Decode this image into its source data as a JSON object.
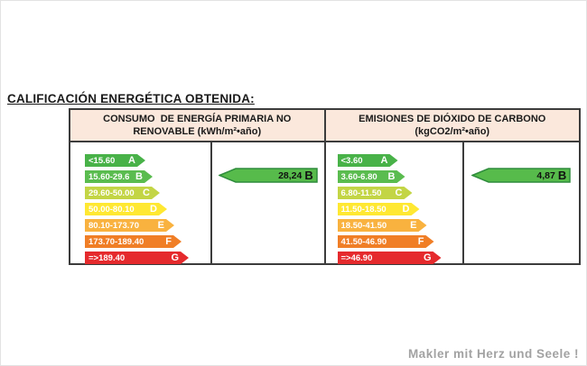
{
  "title": "CALIFICACIÓN ENERGÉTICA OBTENIDA:",
  "footer": "Makler mit Herz und Seele !",
  "colors": {
    "A": "#48B248",
    "B": "#5ABC4F",
    "C": "#C3D545",
    "D": "#FFE832",
    "E": "#F9B23F",
    "F": "#F07E26",
    "G": "#E52A2D",
    "result_fill": "#57BB4B",
    "result_stroke": "#2E8C3C",
    "header_bg": "#FBE8DC",
    "table_border": "#3C3C3C"
  },
  "panels": [
    {
      "header_line1": "CONSUMO  DE ENERGÍA PRIMARIA NO",
      "header_line2": "RENOVABLE (kWh/m²•año)",
      "bars": [
        {
          "range": "<15.60",
          "letter": "A"
        },
        {
          "range": "15.60-29.6",
          "letter": "B"
        },
        {
          "range": "29.60-50.00",
          "letter": "C"
        },
        {
          "range": "50.00-80.10",
          "letter": "D"
        },
        {
          "range": "80.10-173.70",
          "letter": "E"
        },
        {
          "range": "173.70-189.40",
          "letter": "F"
        },
        {
          "range": "=>189.40",
          "letter": "G"
        }
      ],
      "result": {
        "value": "28,24",
        "letter": "B"
      }
    },
    {
      "header_line1": "EMISIONES DE DIÓXIDO DE CARBONO",
      "header_line2": "(kgCO2/m²•año)",
      "bars": [
        {
          "range": "<3.60",
          "letter": "A"
        },
        {
          "range": "3.60-6.80",
          "letter": "B"
        },
        {
          "range": "6.80-11.50",
          "letter": "C"
        },
        {
          "range": "11.50-18.50",
          "letter": "D"
        },
        {
          "range": "18.50-41.50",
          "letter": "E"
        },
        {
          "range": "41.50-46.90",
          "letter": "F"
        },
        {
          "range": "=>46.90",
          "letter": "G"
        }
      ],
      "result": {
        "value": "4,87",
        "letter": "B"
      }
    }
  ],
  "chart_data": [
    {
      "type": "bar",
      "title": "CONSUMO DE ENERGÍA PRIMARIA NO RENOVABLE (kWh/m²•año)",
      "categories": [
        "A",
        "B",
        "C",
        "D",
        "E",
        "F",
        "G"
      ],
      "ranges": [
        "<15.60",
        "15.60-29.6",
        "29.60-50.00",
        "50.00-80.10",
        "80.10-173.70",
        "173.70-189.40",
        "=>189.40"
      ],
      "range_colors": [
        "#48B248",
        "#5ABC4F",
        "#C3D545",
        "#FFE832",
        "#F9B23F",
        "#F07E26",
        "#E52A2D"
      ],
      "obtained_value": 28.24,
      "obtained_value_label": "28,24",
      "obtained_rating": "B",
      "legend_position": "none",
      "grid": false
    },
    {
      "type": "bar",
      "title": "EMISIONES DE DIÓXIDO DE CARBONO (kgCO2/m²•año)",
      "categories": [
        "A",
        "B",
        "C",
        "D",
        "E",
        "F",
        "G"
      ],
      "ranges": [
        "<3.60",
        "3.60-6.80",
        "6.80-11.50",
        "11.50-18.50",
        "18.50-41.50",
        "41.50-46.90",
        "=>46.90"
      ],
      "range_colors": [
        "#48B248",
        "#5ABC4F",
        "#C3D545",
        "#FFE832",
        "#F9B23F",
        "#F07E26",
        "#E52A2D"
      ],
      "obtained_value": 4.87,
      "obtained_value_label": "4,87",
      "obtained_rating": "B",
      "legend_position": "none",
      "grid": false
    }
  ]
}
